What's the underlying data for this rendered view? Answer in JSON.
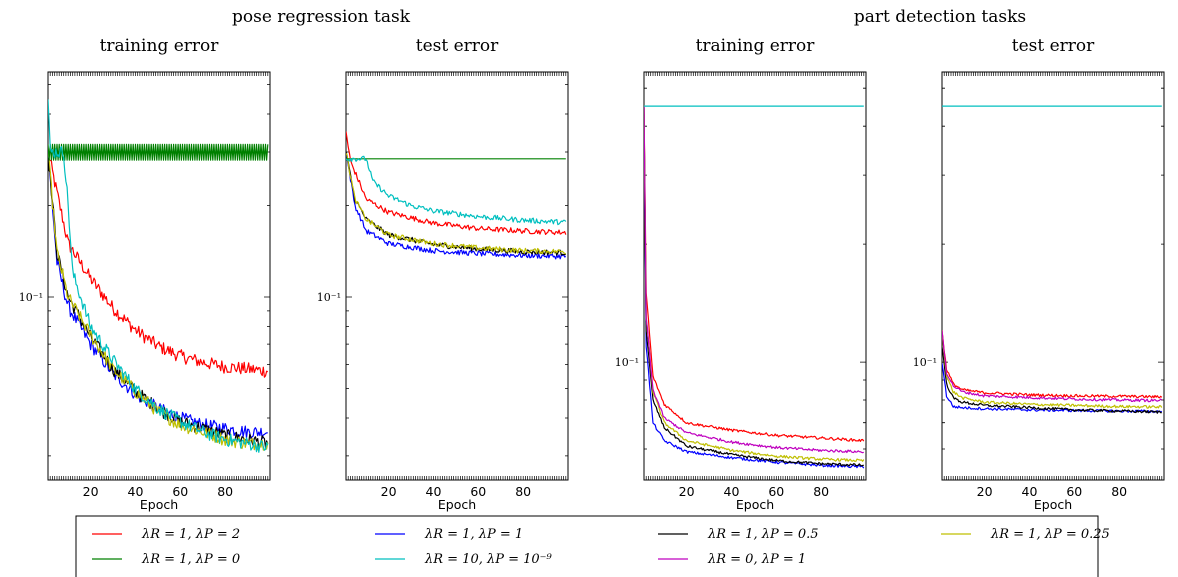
{
  "figure": {
    "group_titles": [
      "pose regression task",
      "part detection tasks"
    ]
  },
  "legend": [
    {
      "label": "λR = 1, λP = 2",
      "color": "#ff0000"
    },
    {
      "label": "λR = 1, λP = 1",
      "color": "#0000ff"
    },
    {
      "label": "λR = 1, λP = 0.5",
      "color": "#000000"
    },
    {
      "label": "λR = 1, λP = 0.25",
      "color": "#bfbf00"
    },
    {
      "label": "λR = 1, λP = 0",
      "color": "#008000"
    },
    {
      "label": "λR = 10, λP = 10⁻⁹",
      "color": "#00bfbf"
    },
    {
      "label": "λR = 0, λP = 1",
      "color": "#bf00bf"
    }
  ],
  "chart_data": [
    {
      "type": "line",
      "group": "pose regression task",
      "title": "training error",
      "xlabel": "Epoch",
      "xticks": [
        20,
        40,
        60,
        80
      ],
      "xlim": [
        1,
        100
      ],
      "yscale": "log",
      "ylim": [
        0.025,
        0.55
      ],
      "yticks": [
        {
          "value": 0.1,
          "label": "10⁻¹"
        }
      ],
      "noise": 0.05,
      "series": [
        {
          "color": "#ff0000",
          "values": [
            [
              1,
              0.3
            ],
            [
              10,
              0.15
            ],
            [
              20,
              0.115
            ],
            [
              30,
              0.092
            ],
            [
              40,
              0.078
            ],
            [
              50,
              0.069
            ],
            [
              60,
              0.064
            ],
            [
              70,
              0.061
            ],
            [
              80,
              0.059
            ],
            [
              90,
              0.058
            ],
            [
              99,
              0.057
            ]
          ]
        },
        {
          "color": "#0000ff",
          "values": [
            [
              1,
              0.3
            ],
            [
              5,
              0.13
            ],
            [
              10,
              0.093
            ],
            [
              20,
              0.07
            ],
            [
              30,
              0.056
            ],
            [
              40,
              0.048
            ],
            [
              50,
              0.043
            ],
            [
              60,
              0.04
            ],
            [
              70,
              0.038
            ],
            [
              80,
              0.037
            ],
            [
              90,
              0.036
            ],
            [
              99,
              0.036
            ]
          ]
        },
        {
          "color": "#000000",
          "values": [
            [
              1,
              0.3
            ],
            [
              5,
              0.14
            ],
            [
              10,
              0.1
            ],
            [
              20,
              0.074
            ],
            [
              30,
              0.058
            ],
            [
              40,
              0.049
            ],
            [
              50,
              0.043
            ],
            [
              60,
              0.039
            ],
            [
              70,
              0.037
            ],
            [
              80,
              0.035
            ],
            [
              90,
              0.034
            ],
            [
              99,
              0.033
            ]
          ]
        },
        {
          "color": "#bfbf00",
          "values": [
            [
              1,
              0.3
            ],
            [
              5,
              0.14
            ],
            [
              10,
              0.1
            ],
            [
              20,
              0.075
            ],
            [
              30,
              0.058
            ],
            [
              40,
              0.049
            ],
            [
              50,
              0.042
            ],
            [
              60,
              0.038
            ],
            [
              70,
              0.036
            ],
            [
              80,
              0.034
            ],
            [
              90,
              0.033
            ],
            [
              99,
              0.033
            ]
          ]
        },
        {
          "color": "#008000",
          "values": [
            [
              1,
              0.3
            ],
            [
              99,
              0.3
            ]
          ],
          "zigzag": true
        },
        {
          "color": "#00bfbf",
          "values": [
            [
              1,
              0.45
            ],
            [
              2,
              0.3
            ],
            [
              8,
              0.3
            ],
            [
              10,
              0.2
            ],
            [
              12,
              0.12
            ],
            [
              20,
              0.08
            ],
            [
              30,
              0.062
            ],
            [
              40,
              0.05
            ],
            [
              50,
              0.043
            ],
            [
              60,
              0.039
            ],
            [
              70,
              0.036
            ],
            [
              80,
              0.034
            ],
            [
              90,
              0.033
            ],
            [
              99,
              0.032
            ]
          ]
        }
      ]
    },
    {
      "type": "line",
      "group": "pose regression task",
      "title": "test error",
      "xlabel": "Epoch",
      "xticks": [
        20,
        40,
        60,
        80
      ],
      "xlim": [
        1,
        100
      ],
      "yscale": "log",
      "ylim": [
        0.025,
        0.55
      ],
      "yticks": [
        {
          "value": 0.1,
          "label": "10⁻¹"
        }
      ],
      "noise": 0.02,
      "series": [
        {
          "color": "#ff0000",
          "values": [
            [
              1,
              0.35
            ],
            [
              3,
              0.28
            ],
            [
              10,
              0.21
            ],
            [
              20,
              0.19
            ],
            [
              40,
              0.175
            ],
            [
              60,
              0.168
            ],
            [
              80,
              0.165
            ],
            [
              99,
              0.163
            ]
          ]
        },
        {
          "color": "#0000ff",
          "values": [
            [
              1,
              0.3
            ],
            [
              5,
              0.2
            ],
            [
              10,
              0.165
            ],
            [
              20,
              0.15
            ],
            [
              40,
              0.142
            ],
            [
              60,
              0.139
            ],
            [
              80,
              0.137
            ],
            [
              99,
              0.136
            ]
          ]
        },
        {
          "color": "#000000",
          "values": [
            [
              1,
              0.3
            ],
            [
              5,
              0.21
            ],
            [
              10,
              0.18
            ],
            [
              20,
              0.16
            ],
            [
              40,
              0.149
            ],
            [
              60,
              0.144
            ],
            [
              80,
              0.141
            ],
            [
              99,
              0.14
            ]
          ]
        },
        {
          "color": "#bfbf00",
          "values": [
            [
              1,
              0.3
            ],
            [
              5,
              0.21
            ],
            [
              10,
              0.18
            ],
            [
              20,
              0.16
            ],
            [
              40,
              0.15
            ],
            [
              60,
              0.145
            ],
            [
              80,
              0.142
            ],
            [
              99,
              0.141
            ]
          ]
        },
        {
          "color": "#008000",
          "values": [
            [
              1,
              0.285
            ],
            [
              99,
              0.285
            ]
          ]
        },
        {
          "color": "#00bfbf",
          "values": [
            [
              1,
              0.285
            ],
            [
              10,
              0.285
            ],
            [
              13,
              0.24
            ],
            [
              20,
              0.215
            ],
            [
              30,
              0.2
            ],
            [
              40,
              0.192
            ],
            [
              60,
              0.184
            ],
            [
              80,
              0.179
            ],
            [
              99,
              0.176
            ]
          ]
        }
      ]
    },
    {
      "type": "line",
      "group": "part detection tasks",
      "title": "training error",
      "xlabel": "Epoch",
      "xticks": [
        20,
        40,
        60,
        80
      ],
      "xlim": [
        1,
        100
      ],
      "yscale": "log",
      "ylim": [
        0.05,
        0.55
      ],
      "yticks": [
        {
          "value": 0.1,
          "label": "10⁻¹"
        }
      ],
      "noise": 0.008,
      "series": [
        {
          "color": "#ff0000",
          "values": [
            [
              1,
              0.45
            ],
            [
              2,
              0.15
            ],
            [
              5,
              0.092
            ],
            [
              10,
              0.078
            ],
            [
              20,
              0.07
            ],
            [
              40,
              0.067
            ],
            [
              60,
              0.065
            ],
            [
              80,
              0.064
            ],
            [
              99,
              0.063
            ]
          ]
        },
        {
          "color": "#0000ff",
          "values": [
            [
              1,
              0.45
            ],
            [
              2,
              0.11
            ],
            [
              5,
              0.07
            ],
            [
              10,
              0.063
            ],
            [
              20,
              0.059
            ],
            [
              40,
              0.057
            ],
            [
              60,
              0.0555
            ],
            [
              80,
              0.0545
            ],
            [
              99,
              0.054
            ]
          ]
        },
        {
          "color": "#000000",
          "values": [
            [
              1,
              0.45
            ],
            [
              2,
              0.12
            ],
            [
              5,
              0.08
            ],
            [
              10,
              0.068
            ],
            [
              20,
              0.061
            ],
            [
              40,
              0.058
            ],
            [
              60,
              0.056
            ],
            [
              80,
              0.055
            ],
            [
              99,
              0.0545
            ]
          ]
        },
        {
          "color": "#bfbf00",
          "values": [
            [
              1,
              0.45
            ],
            [
              2,
              0.13
            ],
            [
              5,
              0.084
            ],
            [
              10,
              0.07
            ],
            [
              20,
              0.063
            ],
            [
              40,
              0.0595
            ],
            [
              60,
              0.0575
            ],
            [
              80,
              0.0565
            ],
            [
              99,
              0.056
            ]
          ]
        },
        {
          "color": "#bf00bf",
          "values": [
            [
              1,
              0.45
            ],
            [
              2,
              0.13
            ],
            [
              5,
              0.085
            ],
            [
              10,
              0.072
            ],
            [
              20,
              0.066
            ],
            [
              40,
              0.0625
            ],
            [
              60,
              0.0605
            ],
            [
              80,
              0.0595
            ],
            [
              99,
              0.059
            ]
          ]
        },
        {
          "color": "#00bfbf",
          "values": [
            [
              1,
              0.45
            ],
            [
              99,
              0.45
            ]
          ]
        }
      ]
    },
    {
      "type": "line",
      "group": "part detection tasks",
      "title": "test error",
      "xlabel": "Epoch",
      "xticks": [
        20,
        40,
        60,
        80
      ],
      "xlim": [
        1,
        100
      ],
      "yscale": "log",
      "ylim": [
        0.05,
        0.55
      ],
      "yticks": [
        {
          "value": 0.1,
          "label": "10⁻¹"
        }
      ],
      "noise": 0.008,
      "series": [
        {
          "color": "#ff0000",
          "values": [
            [
              1,
              0.12
            ],
            [
              3,
              0.096
            ],
            [
              6,
              0.088
            ],
            [
              10,
              0.085
            ],
            [
              20,
              0.0835
            ],
            [
              40,
              0.0825
            ],
            [
              60,
              0.082
            ],
            [
              80,
              0.0818
            ],
            [
              99,
              0.0815
            ]
          ]
        },
        {
          "color": "#0000ff",
          "values": [
            [
              1,
              0.1
            ],
            [
              3,
              0.082
            ],
            [
              6,
              0.077
            ],
            [
              10,
              0.0765
            ],
            [
              20,
              0.076
            ],
            [
              40,
              0.0755
            ],
            [
              60,
              0.0752
            ],
            [
              80,
              0.075
            ],
            [
              99,
              0.0748
            ]
          ]
        },
        {
          "color": "#000000",
          "values": [
            [
              1,
              0.11
            ],
            [
              3,
              0.088
            ],
            [
              6,
              0.081
            ],
            [
              10,
              0.079
            ],
            [
              20,
              0.0775
            ],
            [
              40,
              0.0765
            ],
            [
              60,
              0.0755
            ],
            [
              80,
              0.075
            ],
            [
              99,
              0.0745
            ]
          ]
        },
        {
          "color": "#bfbf00",
          "values": [
            [
              1,
              0.12
            ],
            [
              3,
              0.092
            ],
            [
              6,
              0.084
            ],
            [
              10,
              0.081
            ],
            [
              20,
              0.079
            ],
            [
              40,
              0.078
            ],
            [
              60,
              0.0775
            ],
            [
              80,
              0.077
            ],
            [
              99,
              0.0768
            ]
          ]
        },
        {
          "color": "#bf00bf",
          "values": [
            [
              1,
              0.12
            ],
            [
              3,
              0.094
            ],
            [
              6,
              0.087
            ],
            [
              10,
              0.084
            ],
            [
              20,
              0.082
            ],
            [
              40,
              0.0812
            ],
            [
              60,
              0.0805
            ],
            [
              80,
              0.08
            ],
            [
              99,
              0.0798
            ]
          ]
        },
        {
          "color": "#00bfbf",
          "values": [
            [
              1,
              0.45
            ],
            [
              99,
              0.45
            ]
          ]
        }
      ]
    }
  ]
}
